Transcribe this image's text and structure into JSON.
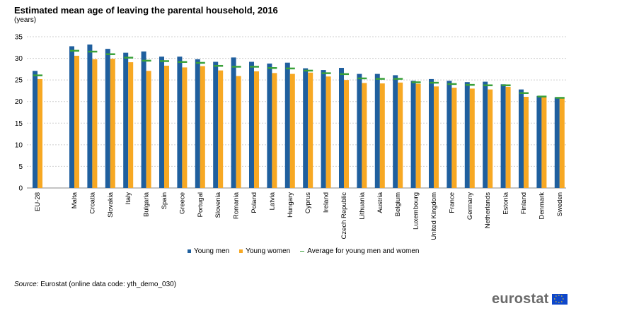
{
  "header": {
    "title": "Estimated mean age of leaving the parental household, 2016",
    "subtitle": "(years)"
  },
  "legend": {
    "men_label": "Young men",
    "women_label": "Young women",
    "avg_label": "Average for young men and women"
  },
  "source": {
    "label": "Source:",
    "text": " Eurostat (online data code: yth_demo_030)"
  },
  "logo": {
    "text": "eurostat",
    "icon": "eu-flag-icon"
  },
  "colors": {
    "men": "#1f5f9e",
    "women": "#f7a823",
    "average": "#3aa13a",
    "grid": "#cfcfcf"
  },
  "chart_data": {
    "type": "bar",
    "title": "Estimated mean age of leaving the parental household, 2016",
    "ylabel": "(years)",
    "ylim": [
      0,
      35
    ],
    "yticks": [
      0,
      5,
      10,
      15,
      20,
      25,
      30,
      35
    ],
    "grid": true,
    "legend_position": "bottom",
    "categories": [
      "EU-28",
      "Malta",
      "Croatia",
      "Slovakia",
      "Italy",
      "Bulgaria",
      "Spain",
      "Greece",
      "Portugal",
      "Slovenia",
      "Romania",
      "Poland",
      "Latvia",
      "Hungary",
      "Cyprus",
      "Ireland",
      "Czech Republic",
      "Lithuania",
      "Austria",
      "Belgium",
      "Luxembourg",
      "United Kingdom",
      "France",
      "Germany",
      "Netherlands",
      "Estonia",
      "Finland",
      "Denmark",
      "Sweden"
    ],
    "series": [
      {
        "name": "Young men",
        "values": [
          27.1,
          32.8,
          33.2,
          32.2,
          31.3,
          31.6,
          30.4,
          30.4,
          29.8,
          29.2,
          30.2,
          29.2,
          28.8,
          29.0,
          27.7,
          27.3,
          27.8,
          26.4,
          26.4,
          26.1,
          24.8,
          25.2,
          24.8,
          24.5,
          24.6,
          24.0,
          22.8,
          21.3,
          21.0
        ]
      },
      {
        "name": "Young women",
        "values": [
          25.2,
          30.6,
          29.8,
          29.9,
          29.1,
          27.1,
          28.3,
          27.9,
          28.2,
          27.2,
          25.9,
          27.0,
          26.6,
          26.4,
          26.7,
          25.8,
          25.0,
          24.3,
          24.2,
          24.4,
          24.1,
          23.5,
          23.2,
          23.0,
          22.8,
          23.4,
          21.1,
          21.0,
          20.7
        ]
      },
      {
        "name": "Average for young men and women",
        "values": [
          26.1,
          31.8,
          31.6,
          31.0,
          30.2,
          29.5,
          29.4,
          29.2,
          29.0,
          28.3,
          28.1,
          28.1,
          27.8,
          27.7,
          27.2,
          26.6,
          26.4,
          25.4,
          25.3,
          25.3,
          24.5,
          24.4,
          24.1,
          23.9,
          23.8,
          23.8,
          22.0,
          21.2,
          20.9
        ]
      }
    ]
  }
}
